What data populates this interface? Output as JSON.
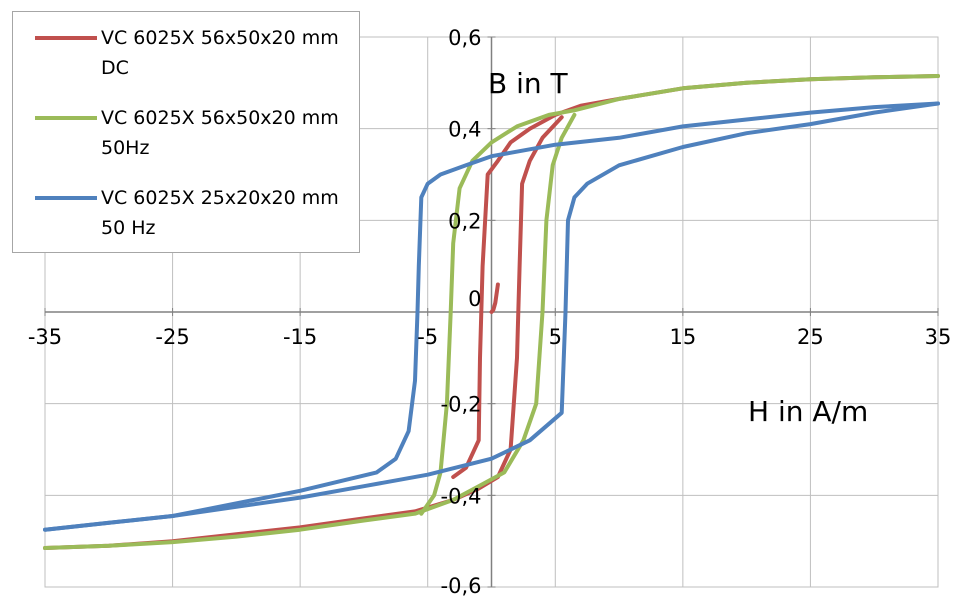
{
  "chart_data": {
    "type": "line",
    "title": "",
    "xlabel": "H in A/m",
    "ylabel": "B in T",
    "xlim": [
      -35,
      35
    ],
    "ylim": [
      -0.6,
      0.6
    ],
    "x_ticks": [
      "-35",
      "-25",
      "-15",
      "-5",
      "5",
      "15",
      "25",
      "35"
    ],
    "y_ticks": [
      "0,6",
      "0,4",
      "0,2",
      "0",
      "-0,2",
      "-0,4",
      "-0,6"
    ],
    "x_tick_values": [
      -35,
      -25,
      -15,
      -5,
      5,
      15,
      25,
      35
    ],
    "y_tick_values": [
      0.6,
      0.4,
      0.2,
      0,
      -0.2,
      -0.4,
      -0.6
    ],
    "grid": true,
    "legend_position": "top-left",
    "series": [
      {
        "name": "VC 6025X 56x50x20 mm DC",
        "color": "#c0504d",
        "descending": [
          [
            35,
            0.515
          ],
          [
            30,
            0.512
          ],
          [
            25,
            0.508
          ],
          [
            20,
            0.5
          ],
          [
            15,
            0.488
          ],
          [
            10,
            0.465
          ],
          [
            7,
            0.45
          ],
          [
            5,
            0.43
          ],
          [
            3,
            0.4
          ],
          [
            1.5,
            0.37
          ],
          [
            0.5,
            0.33
          ],
          [
            -0.3,
            0.3
          ],
          [
            -0.7,
            0.1
          ],
          [
            -0.9,
            -0.1
          ],
          [
            -1.0,
            -0.28
          ],
          [
            -2.0,
            -0.34
          ],
          [
            -3,
            -0.36
          ]
        ],
        "ascending": [
          [
            -35,
            -0.515
          ],
          [
            -30,
            -0.51
          ],
          [
            -25,
            -0.5
          ],
          [
            -20,
            -0.485
          ],
          [
            -15,
            -0.47
          ],
          [
            -10,
            -0.45
          ],
          [
            -6,
            -0.435
          ],
          [
            -3,
            -0.41
          ],
          [
            -1,
            -0.385
          ],
          [
            0.5,
            -0.36
          ],
          [
            1.5,
            -0.3
          ],
          [
            2.0,
            -0.1
          ],
          [
            2.2,
            0.1
          ],
          [
            2.4,
            0.28
          ],
          [
            3,
            0.33
          ],
          [
            4,
            0.38
          ],
          [
            5.5,
            0.425
          ]
        ],
        "initial": [
          [
            0,
            0
          ],
          [
            0.15,
            0.005
          ],
          [
            0.3,
            0.02
          ],
          [
            0.5,
            0.06
          ]
        ]
      },
      {
        "name": "VC 6025X 56x50x20 mm 50Hz",
        "color": "#9bbb59",
        "descending": [
          [
            35,
            0.515
          ],
          [
            30,
            0.512
          ],
          [
            25,
            0.508
          ],
          [
            20,
            0.5
          ],
          [
            15,
            0.488
          ],
          [
            10,
            0.465
          ],
          [
            6.5,
            0.44
          ],
          [
            4.5,
            0.43
          ],
          [
            2,
            0.405
          ],
          [
            0,
            0.37
          ],
          [
            -1.5,
            0.33
          ],
          [
            -2.5,
            0.27
          ],
          [
            -3.0,
            0.15
          ],
          [
            -3.2,
            0.0
          ],
          [
            -3.5,
            -0.2
          ],
          [
            -4.0,
            -0.35
          ],
          [
            -4.5,
            -0.4
          ],
          [
            -5.5,
            -0.44
          ]
        ],
        "ascending": [
          [
            -35,
            -0.515
          ],
          [
            -30,
            -0.51
          ],
          [
            -25,
            -0.502
          ],
          [
            -20,
            -0.49
          ],
          [
            -15,
            -0.475
          ],
          [
            -10,
            -0.455
          ],
          [
            -6,
            -0.44
          ],
          [
            -3,
            -0.41
          ],
          [
            -1,
            -0.38
          ],
          [
            1,
            -0.35
          ],
          [
            2.5,
            -0.28
          ],
          [
            3.5,
            -0.2
          ],
          [
            4.0,
            0.0
          ],
          [
            4.3,
            0.2
          ],
          [
            4.8,
            0.32
          ],
          [
            5.5,
            0.38
          ],
          [
            6.5,
            0.43
          ]
        ]
      },
      {
        "name": "VC 6025X 25x20x20 mm 50 Hz",
        "color": "#4f81bd",
        "descending": [
          [
            35,
            0.455
          ],
          [
            30,
            0.447
          ],
          [
            25,
            0.435
          ],
          [
            20,
            0.42
          ],
          [
            15,
            0.405
          ],
          [
            10,
            0.38
          ],
          [
            5,
            0.365
          ],
          [
            0,
            0.34
          ],
          [
            -2,
            0.32
          ],
          [
            -4,
            0.3
          ],
          [
            -5,
            0.28
          ],
          [
            -5.5,
            0.25
          ],
          [
            -5.7,
            0.1
          ],
          [
            -5.8,
            0.0
          ],
          [
            -6.0,
            -0.15
          ],
          [
            -6.5,
            -0.26
          ],
          [
            -7.5,
            -0.32
          ],
          [
            -9,
            -0.35
          ],
          [
            -15,
            -0.39
          ],
          [
            -25,
            -0.445
          ],
          [
            -35,
            -0.475
          ]
        ],
        "ascending": [
          [
            -35,
            -0.475
          ],
          [
            -30,
            -0.46
          ],
          [
            -25,
            -0.445
          ],
          [
            -20,
            -0.425
          ],
          [
            -15,
            -0.405
          ],
          [
            -10,
            -0.38
          ],
          [
            -5,
            -0.355
          ],
          [
            0,
            -0.32
          ],
          [
            3,
            -0.28
          ],
          [
            5.5,
            -0.22
          ],
          [
            5.8,
            0.0
          ],
          [
            6.0,
            0.2
          ],
          [
            6.5,
            0.25
          ],
          [
            7.5,
            0.28
          ],
          [
            10,
            0.32
          ],
          [
            15,
            0.36
          ],
          [
            20,
            0.39
          ],
          [
            25,
            0.41
          ],
          [
            30,
            0.435
          ],
          [
            35,
            0.455
          ]
        ]
      }
    ]
  }
}
